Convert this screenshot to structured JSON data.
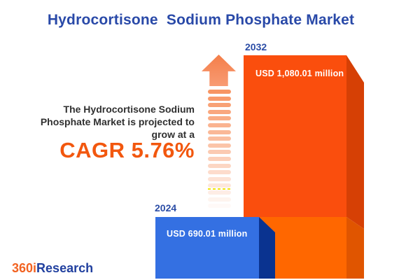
{
  "page": {
    "title": "Hydrocortisone  Sodium Phosphate Market"
  },
  "annotation": {
    "line1": "The Hydrocortisone Sodium",
    "line2": "Phosphate Market is projected to",
    "line3": "grow at a",
    "cagr": "CAGR 5.76%"
  },
  "bars": {
    "y2024": {
      "year": "2024",
      "value_label": "USD 690.01 million"
    },
    "y2032": {
      "year": "2032",
      "value_label": "USD 1,080.01 million"
    }
  },
  "logo": {
    "part1": "360i",
    "part2": "Research"
  },
  "colors": {
    "title_blue": "#2949A8",
    "year_label_blue": "#2B4DA6",
    "annotation_text": "#303030",
    "cagr_orange": "#F2570E",
    "bar_2032_front_upper": "#FA4E0D",
    "bar_2032_front_lower": "#FF6700",
    "bar_2032_side_upper": "#D64005",
    "bar_2032_side_lower": "#E05500",
    "bar_2024_front": "#3470E2",
    "bar_2024_side": "#0A3390",
    "arrow_orange": "#F78F5B",
    "logo_orange": "#F26322",
    "logo_blue": "#21409F"
  },
  "chart_data": {
    "type": "bar",
    "title": "Hydrocortisone Sodium Phosphate Market",
    "categories": [
      "2024",
      "2032"
    ],
    "values": [
      690.01,
      1080.01
    ],
    "unit": "USD million",
    "value_labels": [
      "USD 690.01 million",
      "USD 1,080.01 million"
    ],
    "annotation": "The Hydrocortisone Sodium Phosphate Market is projected to grow at a CAGR 5.76%",
    "cagr_percent": 5.76,
    "bar_colors": [
      "#3470E2",
      "#FA4E0D"
    ],
    "style": "3d-isometric-bars",
    "legend": "none",
    "grid": false,
    "axes_shown": false
  }
}
